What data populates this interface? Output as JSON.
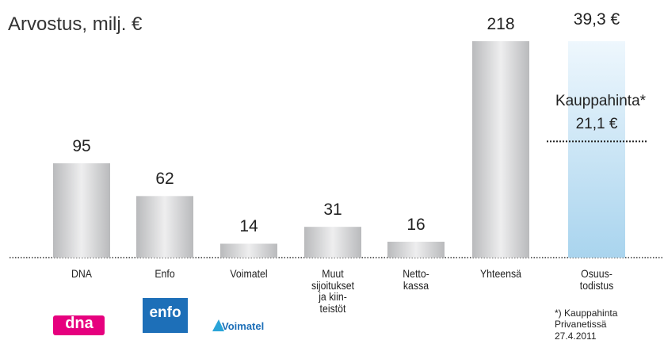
{
  "chart_data": {
    "type": "bar",
    "title": "Arvostus, milj. €",
    "categories": [
      "DNA",
      "Enfo",
      "Voimatel",
      "Muut\nsijoitukset\nja kiin-\nteistöt",
      "Netto-\nkassa",
      "Yhteensä"
    ],
    "values": [
      95,
      62,
      14,
      31,
      16,
      218
    ],
    "color": "#c8c9cb",
    "share": {
      "category": "Osuus-\ntodistus",
      "value": 39.3,
      "value_label": "39,3 €",
      "color": "#a9d4ee",
      "reference": {
        "label": "Kauppahinta*",
        "value": 21.1,
        "value_label": "21,1 €"
      }
    },
    "footnote": "*) Kauppahinta\nPrivanetissä\n27.4.2011",
    "logos": [
      "dna",
      "enfo",
      "Voimatel"
    ]
  }
}
